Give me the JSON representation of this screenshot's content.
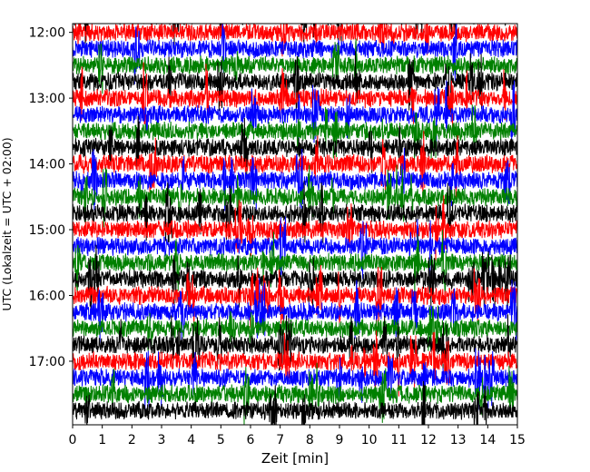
{
  "chart_data": {
    "type": "line",
    "title": "",
    "xlabel": "Zeit  [min]",
    "ylabel": "UTC (Lokalzeit = UTC + 02:00)",
    "xlim": [
      0,
      15
    ],
    "ylim": [
      "11:52",
      "17:58"
    ],
    "x_ticks": [
      "0",
      "1",
      "2",
      "3",
      "4",
      "5",
      "6",
      "7",
      "8",
      "9",
      "10",
      "11",
      "12",
      "13",
      "14",
      "15"
    ],
    "y_ticks": [
      "12:00",
      "13:00",
      "14:00",
      "15:00",
      "16:00",
      "17:00"
    ],
    "trace_interval_min": 15,
    "trace_start": "11:45",
    "trace_end": "17:45",
    "color_cycle": [
      "#000000",
      "#ff0000",
      "#0000ff",
      "#008000"
    ],
    "grid": false,
    "legend": "none"
  }
}
